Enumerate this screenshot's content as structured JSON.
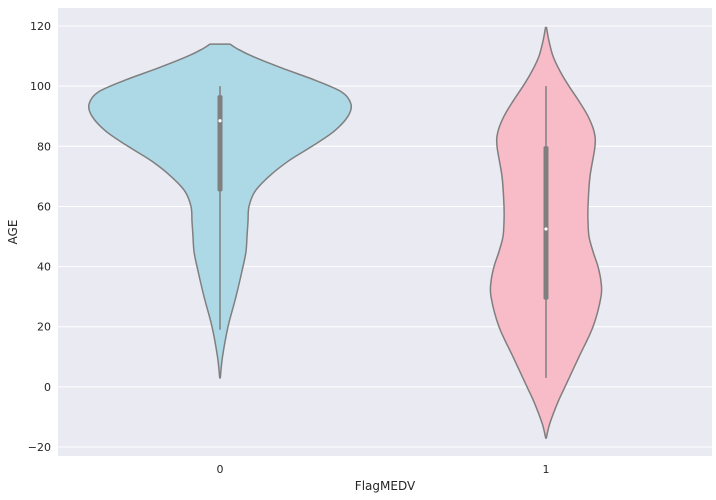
{
  "chart_data": {
    "type": "violin",
    "title": "",
    "xlabel": "FlagMEDV",
    "ylabel": "AGE",
    "ylim": [
      -23,
      126
    ],
    "categories": [
      "0",
      "1"
    ],
    "yticks": [
      -20,
      0,
      20,
      40,
      60,
      80,
      100,
      120
    ],
    "grid": true,
    "background_color": "#eaeaf2",
    "grid_color": "#ffffff",
    "outline_color": "#7f7f7f",
    "violins": [
      {
        "category": "0",
        "color": "#add8e6",
        "box": {
          "q1": 65,
          "median": 88.5,
          "q3": 97,
          "whisker_low": 19,
          "whisker_high": 100
        },
        "density_profile": [
          {
            "y": 3,
            "w": 0.3
          },
          {
            "y": 10,
            "w": 2.5
          },
          {
            "y": 20,
            "w": 8
          },
          {
            "y": 30,
            "w": 16
          },
          {
            "y": 40,
            "w": 23
          },
          {
            "y": 45,
            "w": 26
          },
          {
            "y": 50,
            "w": 27
          },
          {
            "y": 55,
            "w": 28
          },
          {
            "y": 60,
            "w": 29
          },
          {
            "y": 65,
            "w": 35
          },
          {
            "y": 70,
            "w": 49
          },
          {
            "y": 75,
            "w": 68
          },
          {
            "y": 80,
            "w": 92
          },
          {
            "y": 85,
            "w": 114
          },
          {
            "y": 90,
            "w": 128
          },
          {
            "y": 94,
            "w": 131
          },
          {
            "y": 98,
            "w": 122
          },
          {
            "y": 102,
            "w": 95
          },
          {
            "y": 106,
            "w": 62
          },
          {
            "y": 110,
            "w": 32
          },
          {
            "y": 112.5,
            "w": 17
          },
          {
            "y": 114,
            "w": 10
          }
        ]
      },
      {
        "category": "1",
        "color": "#f8bbc8",
        "box": {
          "q1": 29,
          "median": 52.5,
          "q3": 80,
          "whisker_low": 3,
          "whisker_high": 100
        },
        "density_profile": [
          {
            "y": -17,
            "w": 0.3
          },
          {
            "y": -12,
            "w": 4
          },
          {
            "y": -5,
            "w": 12
          },
          {
            "y": 0,
            "w": 19
          },
          {
            "y": 10,
            "w": 33
          },
          {
            "y": 20,
            "w": 47
          },
          {
            "y": 30,
            "w": 55
          },
          {
            "y": 35,
            "w": 55
          },
          {
            "y": 40,
            "w": 52
          },
          {
            "y": 45,
            "w": 47
          },
          {
            "y": 50,
            "w": 43
          },
          {
            "y": 55,
            "w": 42
          },
          {
            "y": 60,
            "w": 42
          },
          {
            "y": 70,
            "w": 44
          },
          {
            "y": 80,
            "w": 49
          },
          {
            "y": 85,
            "w": 48
          },
          {
            "y": 90,
            "w": 42
          },
          {
            "y": 95,
            "w": 33
          },
          {
            "y": 100,
            "w": 23
          },
          {
            "y": 105,
            "w": 14
          },
          {
            "y": 110,
            "w": 7
          },
          {
            "y": 115,
            "w": 3
          },
          {
            "y": 119.5,
            "w": 0.5
          }
        ]
      }
    ]
  }
}
